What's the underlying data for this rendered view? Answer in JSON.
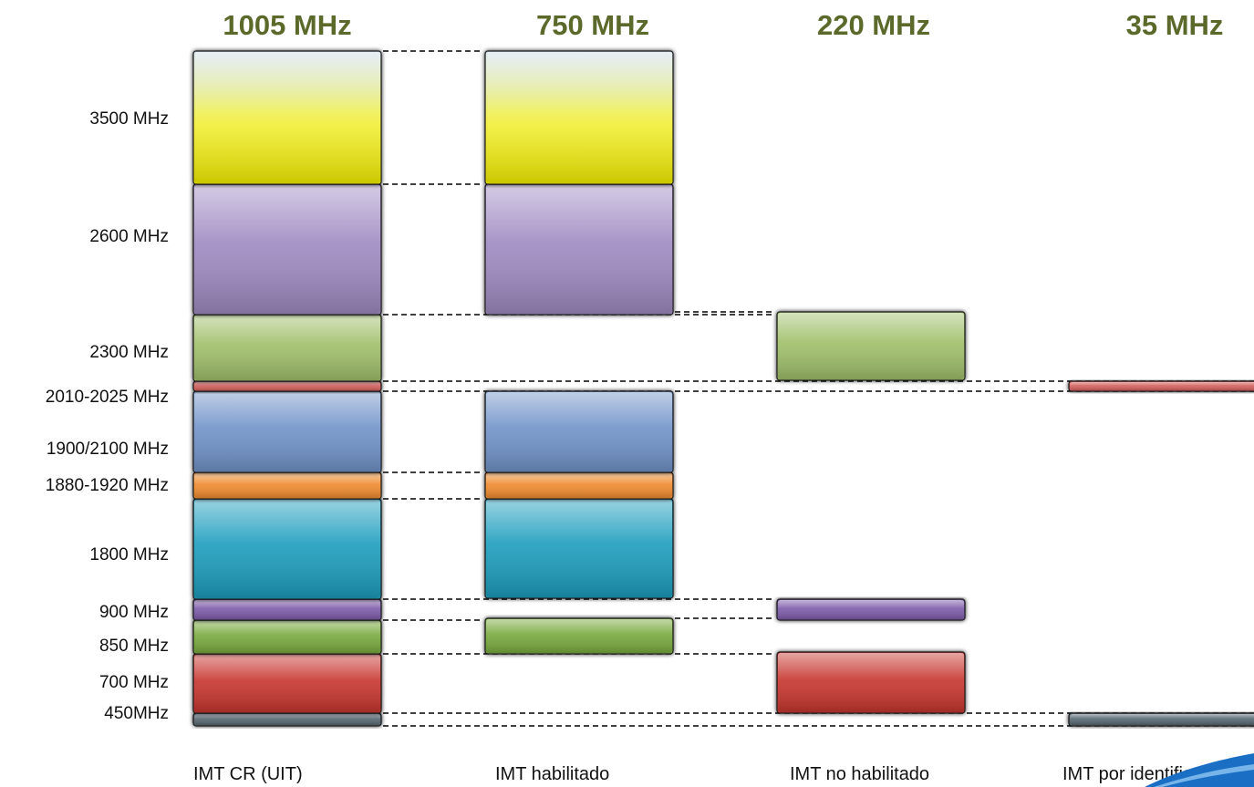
{
  "chart_data": {
    "type": "bar",
    "bands": [
      {
        "key": "450",
        "label": "450MHz",
        "color": "#556570"
      },
      {
        "key": "700",
        "label": "700 MHz",
        "color": "#c7362f"
      },
      {
        "key": "850",
        "label": "850 MHz",
        "color": "#78a93c"
      },
      {
        "key": "900",
        "label": "900 MHz",
        "color": "#7b5aa8"
      },
      {
        "key": "1800",
        "label": "1800 MHz",
        "color": "#1f9dbd"
      },
      {
        "key": "1880",
        "label": "1880-1920 MHz",
        "color": "#ef8b2d"
      },
      {
        "key": "1900",
        "label": "1900/2100 MHz",
        "color": "#6f92c8"
      },
      {
        "key": "2010",
        "label": "2010-2025 MHz",
        "color": "#d45f5c"
      },
      {
        "key": "2300",
        "label": "2300 MHz",
        "color": "#9fbf69"
      },
      {
        "key": "2600",
        "label": "2600 MHz",
        "color": "#9f8ac2"
      },
      {
        "key": "3500",
        "label": "3500 MHz",
        "color": "#f6f316"
      }
    ],
    "columns": [
      {
        "key": "cr",
        "label": "IMT CR (UIT)",
        "total": "1005 MHz",
        "present": [
          "450",
          "700",
          "850",
          "900",
          "1800",
          "1880",
          "1900",
          "2010",
          "2300",
          "2600",
          "3500"
        ]
      },
      {
        "key": "habilitado",
        "label": "IMT habilitado",
        "total": "750 MHz",
        "present": [
          "850",
          "1800",
          "1880",
          "1900",
          "2600",
          "3500"
        ]
      },
      {
        "key": "no_habilitado",
        "label": "IMT no habilitado",
        "total": "220 MHz",
        "present": [
          "700",
          "900",
          "2300"
        ]
      },
      {
        "key": "por_identificar",
        "label": "IMT por identificar",
        "total": "35 MHz",
        "present": [
          "450",
          "2010"
        ]
      }
    ]
  }
}
